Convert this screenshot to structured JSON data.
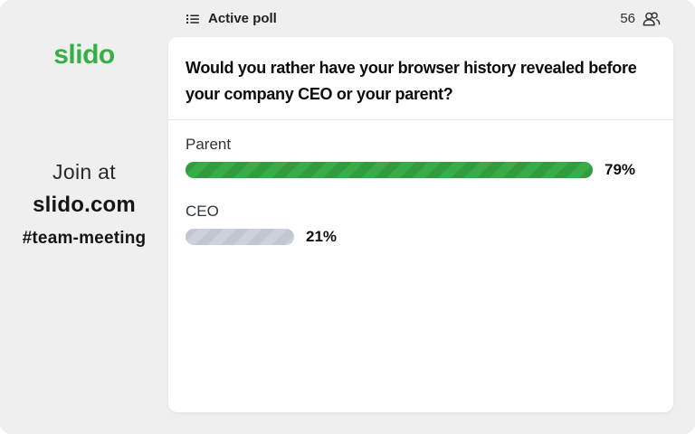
{
  "brand": {
    "logo_text": "slido",
    "logo_color": "#35b045"
  },
  "sidebar": {
    "join_prompt": "Join at",
    "join_url": "slido.com",
    "event_code": "#team-meeting"
  },
  "topbar": {
    "status_label": "Active poll",
    "status_icon": "poll-list-icon",
    "participants_count": "56",
    "participants_icon": "participants-icon"
  },
  "poll": {
    "question": "Would you rather have your browser history revealed before your company CEO or your parent?"
  },
  "chart_data": {
    "type": "bar",
    "orientation": "horizontal",
    "title": "Would you rather have your browser history revealed before your company CEO or your parent?",
    "categories": [
      "Parent",
      "CEO"
    ],
    "values": [
      79,
      21
    ],
    "value_labels": [
      "79%",
      "21%"
    ],
    "xlim": [
      0,
      100
    ],
    "grid": false,
    "legend": "none",
    "colors": {
      "leading_bar": "#38ac46",
      "other_bar": "#ccd2dd"
    }
  }
}
